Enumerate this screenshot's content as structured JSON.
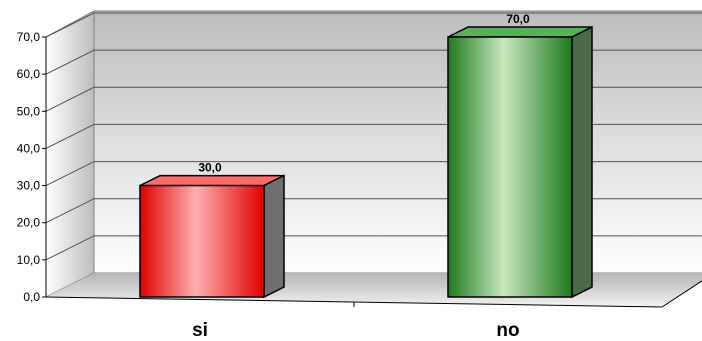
{
  "chart_data": {
    "type": "bar",
    "style": "3d-column",
    "title": "",
    "xlabel": "",
    "ylabel": "",
    "ylim": [
      0,
      70
    ],
    "ytick_step": 10,
    "grid": true,
    "legend": "none",
    "categories": [
      "si",
      "no"
    ],
    "values": [
      30.0,
      70.0
    ],
    "data_labels": [
      "30,0",
      "70,0"
    ],
    "y_tick_labels": [
      "0,0",
      "10,0",
      "20,0",
      "30,0",
      "40,0",
      "50,0",
      "60,0",
      "70,0"
    ],
    "bar_colors": [
      "#ff3a3a",
      "#2e8a2e"
    ]
  }
}
